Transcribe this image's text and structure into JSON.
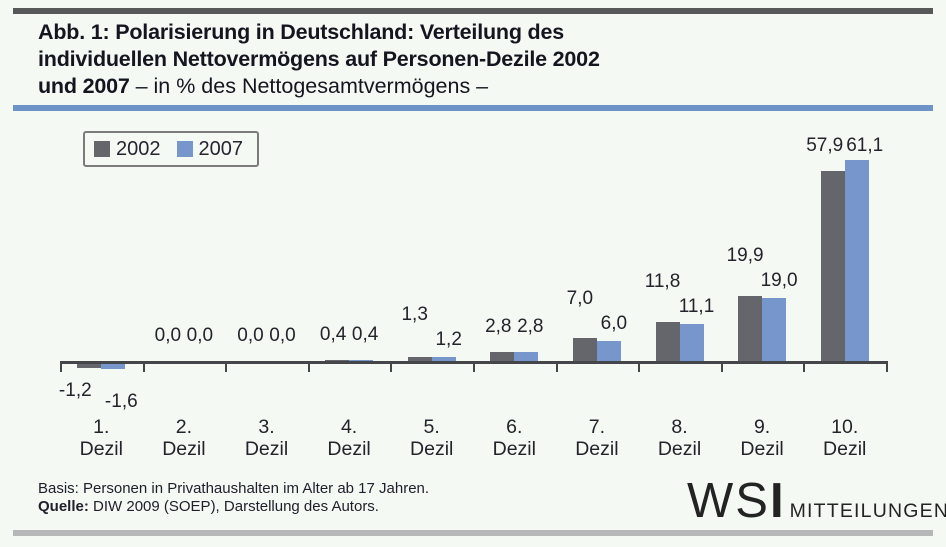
{
  "accent_colors": {
    "top_bar": "#57585a",
    "blue_rule": "#6e93c9",
    "bottom_bar": "#b5b7b9",
    "background": "#f4f9f4"
  },
  "title": {
    "lines": [
      {
        "bold": "Abb. 1: Polarisierung in Deutschland: Verteilung des",
        "regular": ""
      },
      {
        "bold": "individuellen Nettovermögens auf Personen-Dezile 2002",
        "regular": ""
      },
      {
        "bold": "und 2007",
        "regular": " – in % des Nettogesamtvermögens –"
      }
    ]
  },
  "chart_data": {
    "type": "bar",
    "categories": [
      "1. Dezil",
      "2. Dezil",
      "3. Dezil",
      "4. Dezil",
      "5. Dezil",
      "6. Dezil",
      "7. Dezil",
      "8. Dezil",
      "9. Dezil",
      "10. Dezil"
    ],
    "series": [
      {
        "name": "2002",
        "color": "#64666b",
        "values": [
          -1.2,
          0.0,
          0.0,
          0.4,
          1.3,
          2.8,
          7.0,
          11.8,
          19.9,
          57.9
        ]
      },
      {
        "name": "2007",
        "color": "#7797cc",
        "values": [
          -1.6,
          0.0,
          0.0,
          0.4,
          1.2,
          2.8,
          6.0,
          11.1,
          19.0,
          61.1
        ]
      }
    ],
    "value_label_decimals": 1,
    "value_label_decimal_separator": ",",
    "label_stagger": [
      true,
      false,
      false,
      false,
      true,
      false,
      true,
      true,
      true,
      false
    ],
    "ylim": [
      -2,
      65
    ],
    "grid": false,
    "legend_position": "top-left",
    "xlabel": "",
    "ylabel": ""
  },
  "footer": {
    "notes": [
      {
        "label": "Basis:",
        "text": " Personen in Privathaushalten im Alter ab 17 Jahren.",
        "label_bold": false
      },
      {
        "label": "Quelle:",
        "text": " DIW 2009 (SOEP), Darstellung des Autors.",
        "label_bold": true
      }
    ],
    "logo": {
      "wsi_thin": "WS",
      "wsi_heavy": "I",
      "suffix": "MITTEILUNGEN"
    }
  }
}
